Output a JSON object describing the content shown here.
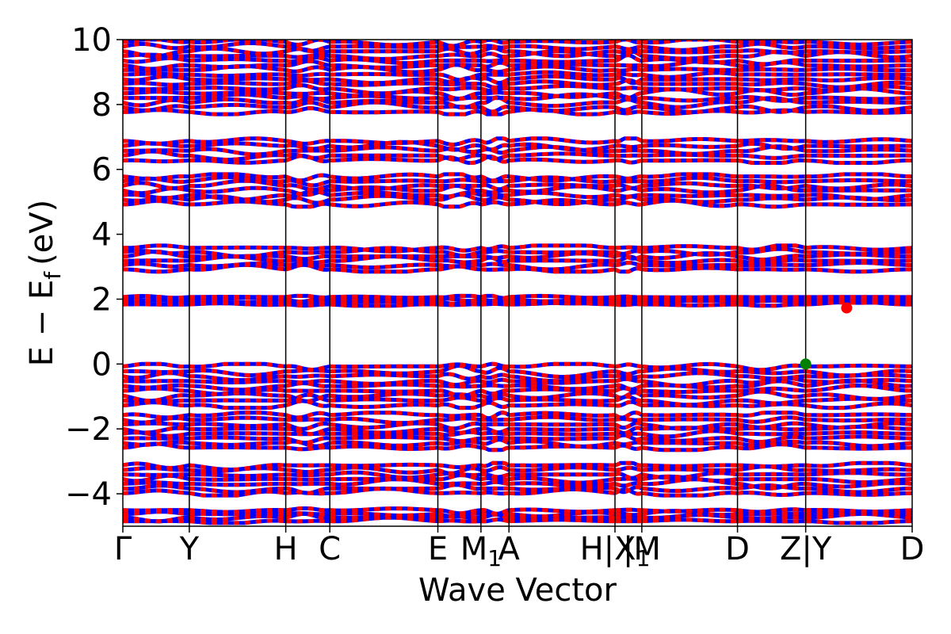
{
  "chart_data": {
    "type": "line",
    "title": "",
    "xlabel": "Wave Vector",
    "ylabel": "E − E",
    "ylabel_sub": "f",
    "ylabel_unit": "(eV)",
    "ylim": [
      -5,
      10
    ],
    "yticks": [
      -4,
      -2,
      0,
      2,
      4,
      6,
      8,
      10
    ],
    "ytick_labels": [
      "−4",
      "−2",
      "0",
      "2",
      "4",
      "6",
      "8",
      "10"
    ],
    "grid": false,
    "legend": "none",
    "kpoint_ticks": [
      {
        "label": "Γ",
        "k": 0.0
      },
      {
        "label": "Y",
        "k": 0.0842
      },
      {
        "label": "H",
        "k": 0.2064
      },
      {
        "label": "C",
        "k": 0.2622
      },
      {
        "label": "E",
        "k": 0.3991
      },
      {
        "label": "M",
        "sub": "1",
        "k": 0.4537
      },
      {
        "label": "A",
        "k": 0.4892
      },
      {
        "label": "H|X",
        "sub": "1",
        "k": 0.6235
      },
      {
        "label": "|M",
        "k": 0.6575
      },
      {
        "label": "D",
        "k": 0.7787
      },
      {
        "label": "Z|Y",
        "k": 0.8651
      },
      {
        "label": "D",
        "k": 1.0
      }
    ],
    "series_colors": {
      "spin_up": "#0000ff",
      "spin_down": "#ff0000"
    },
    "band_groups_eV": [
      [
        -4.9,
        -4.45
      ],
      [
        -4.05,
        -3.05
      ],
      [
        -2.65,
        -1.5
      ],
      [
        -1.35,
        0.0
      ],
      [
        1.8,
        2.1
      ],
      [
        2.85,
        3.65
      ],
      [
        4.85,
        5.85
      ],
      [
        6.2,
        6.95
      ],
      [
        7.7,
        10.0
      ]
    ],
    "markers": [
      {
        "name": "VBM",
        "k": 0.8651,
        "E": 0.0,
        "color": "#008000"
      },
      {
        "name": "CBM",
        "k": 0.917,
        "E": 1.73,
        "color": "#ff0000"
      }
    ]
  }
}
